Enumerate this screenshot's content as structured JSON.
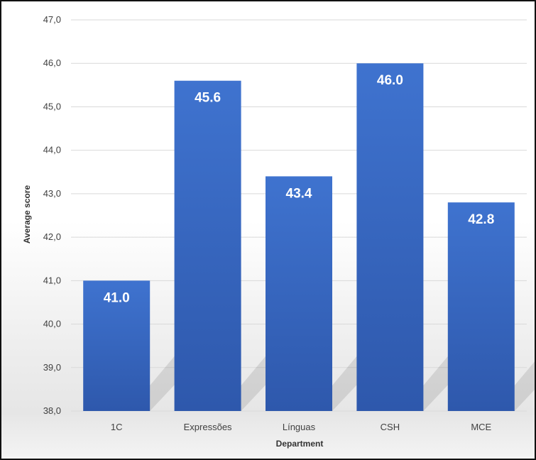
{
  "chart_data": {
    "type": "bar",
    "title": "",
    "xlabel": "Department",
    "ylabel": "Average score",
    "categories": [
      "1C",
      "Expressões",
      "Línguas",
      "CSH",
      "MCE"
    ],
    "values": [
      41.0,
      45.6,
      43.4,
      46.0,
      42.8
    ],
    "value_labels": [
      "41.0",
      "45.6",
      "43.4",
      "46.0",
      "42.8"
    ],
    "ylim": [
      38,
      47
    ],
    "yticks": [
      "38,0",
      "39,0",
      "40,0",
      "41,0",
      "42,0",
      "43,0",
      "44,0",
      "45,0",
      "46,0",
      "47,0"
    ],
    "grid": true,
    "legend": "none",
    "bar_color": "#3a6bc4"
  }
}
